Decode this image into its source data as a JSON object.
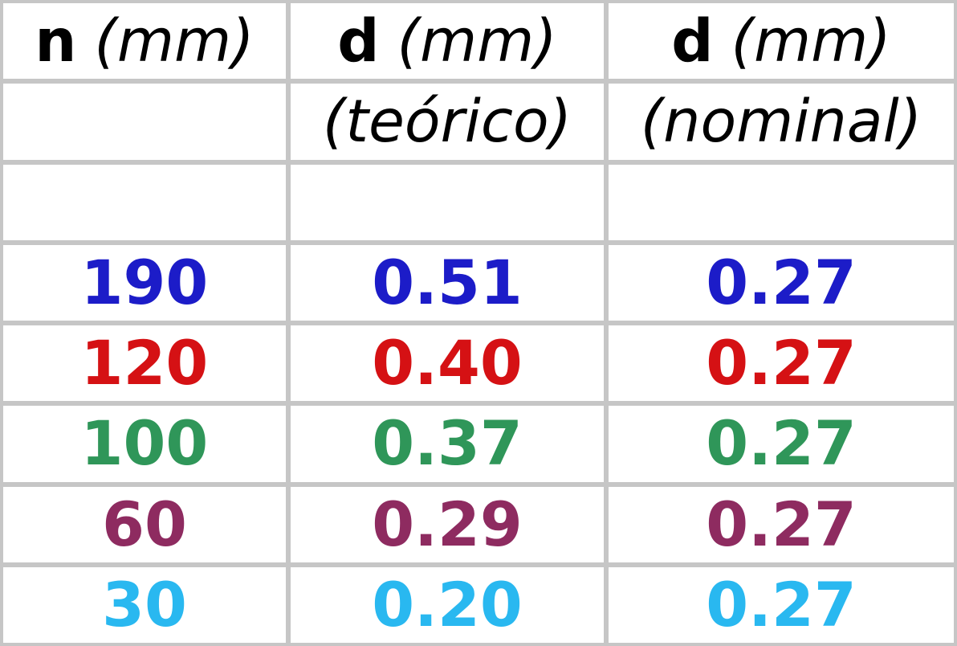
{
  "table": {
    "gridline_color": "#c6c6c6",
    "cell_background": "#ffffff",
    "header": {
      "col1": {
        "symbol": "n",
        "unit": "(mm)",
        "qualifier": ""
      },
      "col2": {
        "symbol": "d",
        "unit": "(mm)",
        "qualifier": "(teórico)"
      },
      "col3": {
        "symbol": "d",
        "unit": "(mm)",
        "qualifier": "(nominal)"
      }
    },
    "rows": [
      {
        "n": "190",
        "d_teorico": "0.51",
        "d_nominal": "0.27",
        "color": "#1c1cc8"
      },
      {
        "n": "120",
        "d_teorico": "0.40",
        "d_nominal": "0.27",
        "color": "#d51114"
      },
      {
        "n": "100",
        "d_teorico": "0.37",
        "d_nominal": "0.27",
        "color": "#2f9659"
      },
      {
        "n": "60",
        "d_teorico": "0.29",
        "d_nominal": "0.27",
        "color": "#8e2b60"
      },
      {
        "n": "30",
        "d_teorico": "0.20",
        "d_nominal": "0.27",
        "color": "#29b8f0"
      }
    ]
  },
  "chart_data": {
    "type": "table",
    "title": "",
    "columns": [
      "n (mm)",
      "d (mm) (teórico)",
      "d (mm) (nominal)"
    ],
    "rows": [
      [
        190,
        0.51,
        0.27
      ],
      [
        120,
        0.4,
        0.27
      ],
      [
        100,
        0.37,
        0.27
      ],
      [
        60,
        0.29,
        0.27
      ],
      [
        30,
        0.2,
        0.27
      ]
    ],
    "row_colors": [
      "#1c1cc8",
      "#d51114",
      "#2f9659",
      "#8e2b60",
      "#29b8f0"
    ],
    "layout": {
      "grid": "on",
      "header_rows": 2,
      "spacer_row_after_header": true
    }
  }
}
